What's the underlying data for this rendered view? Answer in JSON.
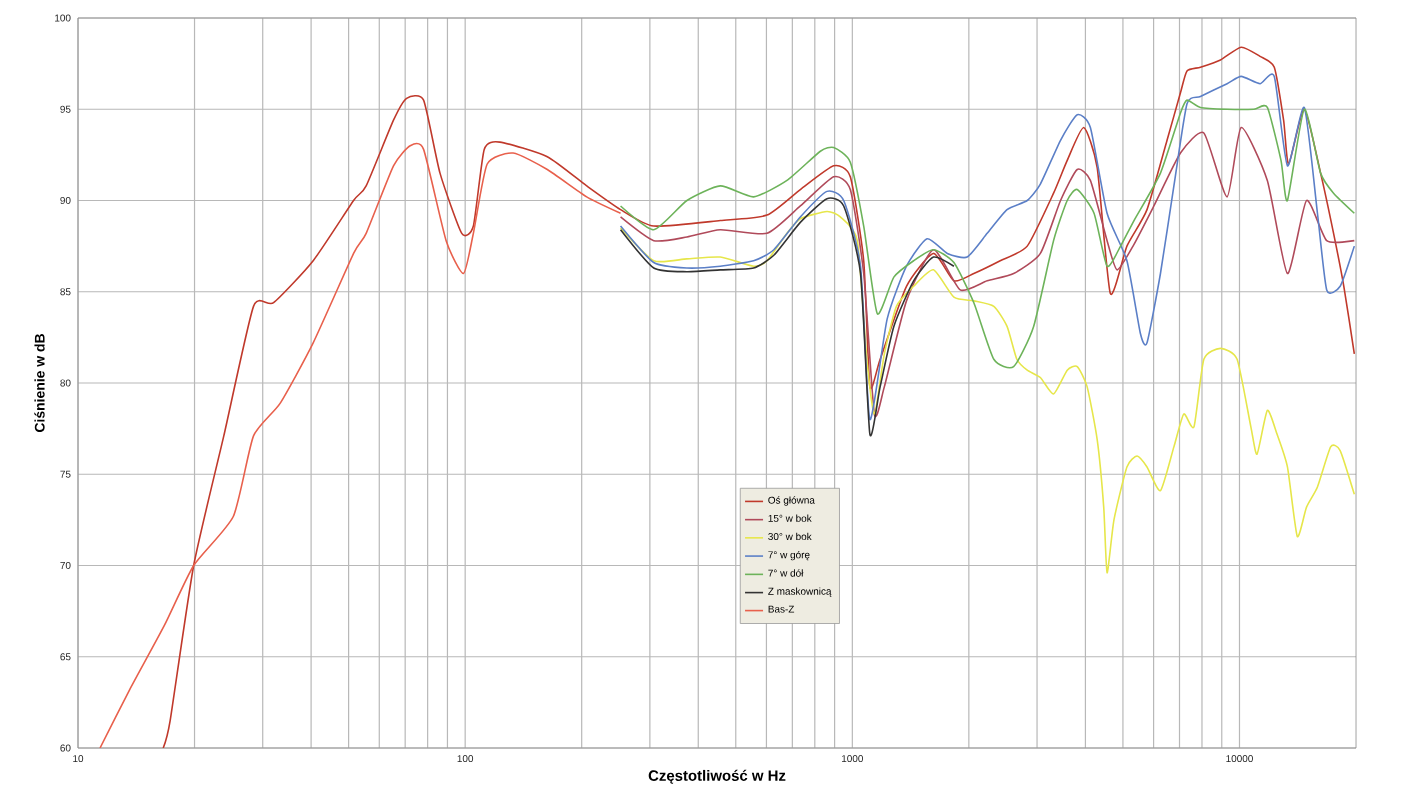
{
  "chart_data": {
    "type": "line",
    "xlabel": "Częstotliwość w Hz",
    "ylabel": "Ciśnienie w dB",
    "log": "x",
    "xlim": [
      10,
      20000
    ],
    "ylim": [
      60,
      100
    ],
    "xticks": [
      10,
      100,
      1000,
      10000
    ],
    "yticks": [
      60,
      65,
      70,
      75,
      80,
      85,
      90,
      95,
      100
    ],
    "grid": true,
    "legend": "bottom",
    "series": [
      {
        "name": "Oś główna",
        "color": "#c0392b",
        "x": [
          16.6,
          17.3,
          19.9,
          23.8,
          28.4,
          32.0,
          40.5,
          51.5,
          55.5,
          65.3,
          70.6,
          78.1,
          86.1,
          98,
          105,
          112,
          123,
          163,
          206,
          252,
          307,
          456,
          602,
          734,
          895,
          988,
          1070,
          1110,
          1180,
          1380,
          1620,
          1830,
          2060,
          2410,
          2830,
          3310,
          3590,
          3960,
          4290,
          4640,
          5120,
          5770,
          6500,
          7040,
          7320,
          7930,
          8930,
          10100,
          11300,
          12300,
          13000,
          13400,
          14700,
          16200,
          17500,
          18600,
          19800
        ],
        "values": [
          60.0,
          61.5,
          70.0,
          77.1,
          84.2,
          84.4,
          86.7,
          90.0,
          90.8,
          94.4,
          95.6,
          95.5,
          91.5,
          88.2,
          88.6,
          92.8,
          93.2,
          92.4,
          90.8,
          89.5,
          88.6,
          88.9,
          89.2,
          90.6,
          91.9,
          91.3,
          86.7,
          79.8,
          81.3,
          85.3,
          87.1,
          85.6,
          86.0,
          86.7,
          87.5,
          90.4,
          92.2,
          94.0,
          91.8,
          84.9,
          87.5,
          89.5,
          93.3,
          95.9,
          97.1,
          97.3,
          97.7,
          98.4,
          97.9,
          97.3,
          94.4,
          92.0,
          95.0,
          91.5,
          88.2,
          85.3,
          81.6
        ]
      },
      {
        "name": "15° w bok",
        "color": "#b04a5a",
        "x": [
          252,
          307,
          374,
          456,
          602,
          734,
          895,
          988,
          1070,
          1140,
          1210,
          1380,
          1620,
          1900,
          2230,
          2610,
          3060,
          3450,
          3810,
          4120,
          4550,
          4830,
          5340,
          6010,
          7040,
          8090,
          9290,
          10100,
          11800,
          13300,
          14900,
          16800,
          19800
        ],
        "values": [
          89.1,
          87.8,
          88.0,
          88.4,
          88.2,
          89.7,
          91.3,
          90.6,
          86.0,
          78.3,
          79.8,
          84.5,
          87.3,
          85.1,
          85.6,
          86.0,
          87.1,
          90.0,
          91.7,
          91.1,
          87.8,
          86.2,
          87.6,
          89.7,
          92.6,
          93.7,
          90.2,
          94.0,
          91.1,
          86.0,
          90.0,
          87.8,
          87.8
        ]
      },
      {
        "name": "30° w bok",
        "color": "#e6e64a",
        "x": [
          252,
          307,
          374,
          456,
          556,
          602,
          678,
          734,
          860,
          931,
          1030,
          1090,
          1140,
          1210,
          1300,
          1440,
          1620,
          1830,
          2060,
          2320,
          2510,
          2660,
          2830,
          3060,
          3310,
          3590,
          3810,
          4040,
          4290,
          4460,
          4550,
          4740,
          5120,
          5440,
          5770,
          6250,
          6770,
          7180,
          7630,
          8090,
          8930,
          9860,
          10700,
          11100,
          11800,
          12500,
          13300,
          14100,
          14900,
          15900,
          17200,
          18200,
          19800
        ],
        "values": [
          88.5,
          86.7,
          86.8,
          86.9,
          86.4,
          86.7,
          88.2,
          89.0,
          89.4,
          89.1,
          87.8,
          81.3,
          78.3,
          81.6,
          84.2,
          85.3,
          86.2,
          84.7,
          84.5,
          84.2,
          83.1,
          81.3,
          80.7,
          80.3,
          79.4,
          80.7,
          80.9,
          79.8,
          76.9,
          73.2,
          69.6,
          72.5,
          75.4,
          76.0,
          75.4,
          74.1,
          76.5,
          78.3,
          77.6,
          81.3,
          81.9,
          81.3,
          77.6,
          76.1,
          78.5,
          77.2,
          75.4,
          71.6,
          73.2,
          74.3,
          76.5,
          76.3,
          73.9
        ]
      },
      {
        "name": "7° w górę",
        "color": "#5b7fc7",
        "x": [
          252,
          307,
          374,
          456,
          556,
          627,
          734,
          860,
          950,
          1050,
          1110,
          1230,
          1380,
          1560,
          1760,
          1980,
          2230,
          2510,
          2830,
          3060,
          3450,
          3810,
          4120,
          4550,
          5120,
          5550,
          5770,
          6250,
          6770,
          7320,
          7930,
          9290,
          10100,
          11300,
          12300,
          13300,
          14700,
          15900,
          16800,
          18200,
          19800
        ],
        "values": [
          88.6,
          86.6,
          86.3,
          86.4,
          86.7,
          87.3,
          89.1,
          90.5,
          90.0,
          86.4,
          78.0,
          83.5,
          86.4,
          87.9,
          87.1,
          86.9,
          88.2,
          89.5,
          90.0,
          90.9,
          93.3,
          94.7,
          94.0,
          89.3,
          86.7,
          82.7,
          82.2,
          86.0,
          90.8,
          95.3,
          95.7,
          96.4,
          96.8,
          96.4,
          96.8,
          91.9,
          95.1,
          89.3,
          85.1,
          85.3,
          87.5
        ]
      },
      {
        "name": "7° w dół",
        "color": "#6db35a",
        "x": [
          252,
          307,
          374,
          456,
          556,
          678,
          827,
          895,
          988,
          1070,
          1160,
          1280,
          1440,
          1620,
          1830,
          2060,
          2320,
          2610,
          2940,
          3310,
          3590,
          3810,
          4210,
          4550,
          4930,
          5340,
          6250,
          7040,
          7320,
          7930,
          9290,
          10900,
          11800,
          12800,
          13300,
          14700,
          16200,
          17500,
          19800
        ],
        "values": [
          89.7,
          88.4,
          90.0,
          90.8,
          90.2,
          91.1,
          92.7,
          92.9,
          92.1,
          88.6,
          83.8,
          85.8,
          86.7,
          87.3,
          86.6,
          84.4,
          81.3,
          80.9,
          83.1,
          87.8,
          90.0,
          90.6,
          89.3,
          86.4,
          87.5,
          88.9,
          91.5,
          94.8,
          95.5,
          95.1,
          95.0,
          95.0,
          95.1,
          92.2,
          90.0,
          95.0,
          91.5,
          90.4,
          89.3
        ]
      },
      {
        "name": "Z maskownicą",
        "color": "#333333",
        "x": [
          252,
          307,
          374,
          456,
          556,
          627,
          734,
          860,
          950,
          1050,
          1110,
          1180,
          1280,
          1440,
          1620,
          1830
        ],
        "values": [
          88.4,
          86.3,
          86.1,
          86.2,
          86.3,
          87.0,
          88.8,
          90.1,
          89.7,
          86.0,
          77.2,
          79.8,
          83.1,
          85.6,
          86.9,
          86.4
        ]
      },
      {
        "name": "Bas-Z",
        "color": "#e8604c",
        "x": [
          11.4,
          13.6,
          16.7,
          19.9,
          25.2,
          28.4,
          33.3,
          40.5,
          51.5,
          55.5,
          65.3,
          72.1,
          78.1,
          89.3,
          99,
          105,
          114,
          133,
          163,
          206,
          252
        ],
        "values": [
          60.0,
          63.2,
          66.7,
          70.0,
          72.7,
          77.1,
          78.9,
          82.2,
          87.1,
          88.2,
          91.9,
          93.0,
          92.8,
          87.8,
          86.0,
          88.2,
          92.0,
          92.6,
          91.7,
          90.2,
          89.3
        ]
      }
    ]
  }
}
